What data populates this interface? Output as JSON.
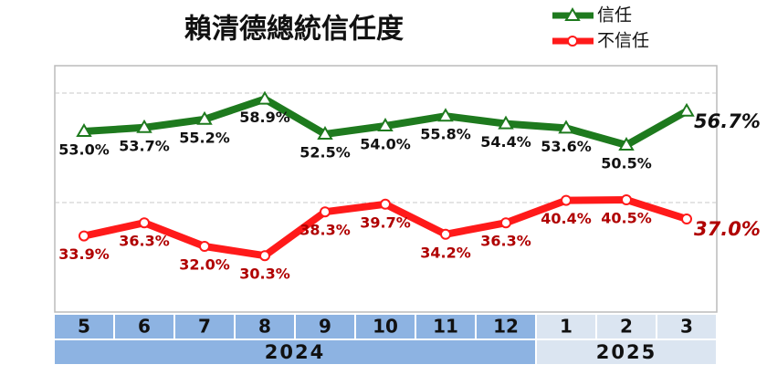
{
  "chart_data": {
    "type": "line",
    "title": "賴清德總統信任度",
    "categories": [
      "5",
      "6",
      "7",
      "8",
      "9",
      "10",
      "11",
      "12",
      "1",
      "2",
      "3"
    ],
    "x_groups": [
      {
        "label": "2024",
        "count": 8,
        "color": "#8db3e2"
      },
      {
        "label": "2025",
        "count": 3,
        "color": "#dbe5f1"
      }
    ],
    "series": [
      {
        "name": "信任",
        "color": "#1e7a1e",
        "label_color": "#111111",
        "marker": "triangle",
        "values": [
          53.0,
          53.7,
          55.2,
          58.9,
          52.5,
          54.0,
          55.8,
          54.4,
          53.6,
          50.5,
          56.7
        ],
        "value_labels": [
          "53.0%",
          "53.7%",
          "55.2%",
          "58.9%",
          "52.5%",
          "54.0%",
          "55.8%",
          "54.4%",
          "53.6%",
          "50.5%",
          "56.7%"
        ]
      },
      {
        "name": "不信任",
        "color": "#ff1a1a",
        "label_color": "#b00000",
        "marker": "circle",
        "values": [
          33.9,
          36.3,
          32.0,
          30.3,
          38.3,
          39.7,
          34.2,
          36.3,
          40.4,
          40.5,
          37.0
        ],
        "value_labels": [
          "33.9%",
          "36.3%",
          "32.0%",
          "30.3%",
          "38.3%",
          "39.7%",
          "34.2%",
          "36.3%",
          "40.4%",
          "40.5%",
          "37.0%"
        ]
      }
    ],
    "ylim": [
      20,
      65
    ],
    "gridlines": [
      40,
      60
    ],
    "highlight_last": true
  }
}
